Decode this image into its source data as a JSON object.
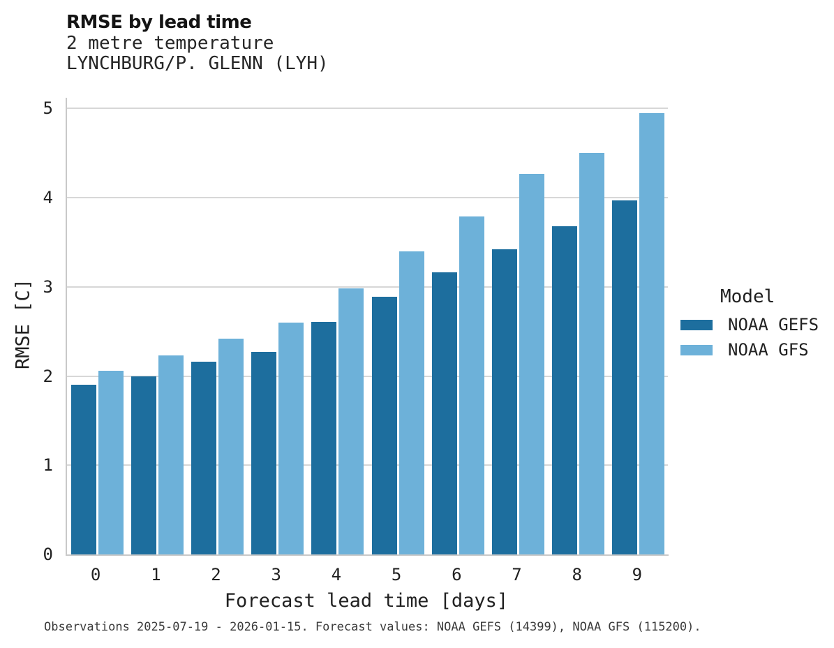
{
  "chart_data": {
    "type": "bar",
    "title": "RMSE by lead time",
    "subtitle": [
      "2 metre temperature",
      "LYNCHBURG/P. GLENN (LYH)"
    ],
    "xlabel": "Forecast lead time [days]",
    "ylabel": "RMSE [C]",
    "categories": [
      "0",
      "1",
      "2",
      "3",
      "4",
      "5",
      "6",
      "7",
      "8",
      "9"
    ],
    "series": [
      {
        "name": "NOAA GEFS",
        "color": "#1d6e9e",
        "values": [
          1.9,
          2.0,
          2.16,
          2.27,
          2.61,
          2.89,
          3.16,
          3.42,
          3.68,
          3.97
        ]
      },
      {
        "name": "NOAA GFS",
        "color": "#6db1d9",
        "values": [
          2.06,
          2.23,
          2.42,
          2.6,
          2.98,
          3.4,
          3.79,
          4.27,
          4.5,
          4.95
        ]
      }
    ],
    "ylim": [
      0,
      5.12
    ],
    "yticks": [
      0,
      1,
      2,
      3,
      4,
      5
    ],
    "grid": "horizontal",
    "legend": {
      "title": "Model",
      "position": "right-center"
    }
  },
  "footer": {
    "note": "Observations 2025-07-19 - 2026-01-15. Forecast values: NOAA GEFS (14399), NOAA GFS (115200)."
  }
}
